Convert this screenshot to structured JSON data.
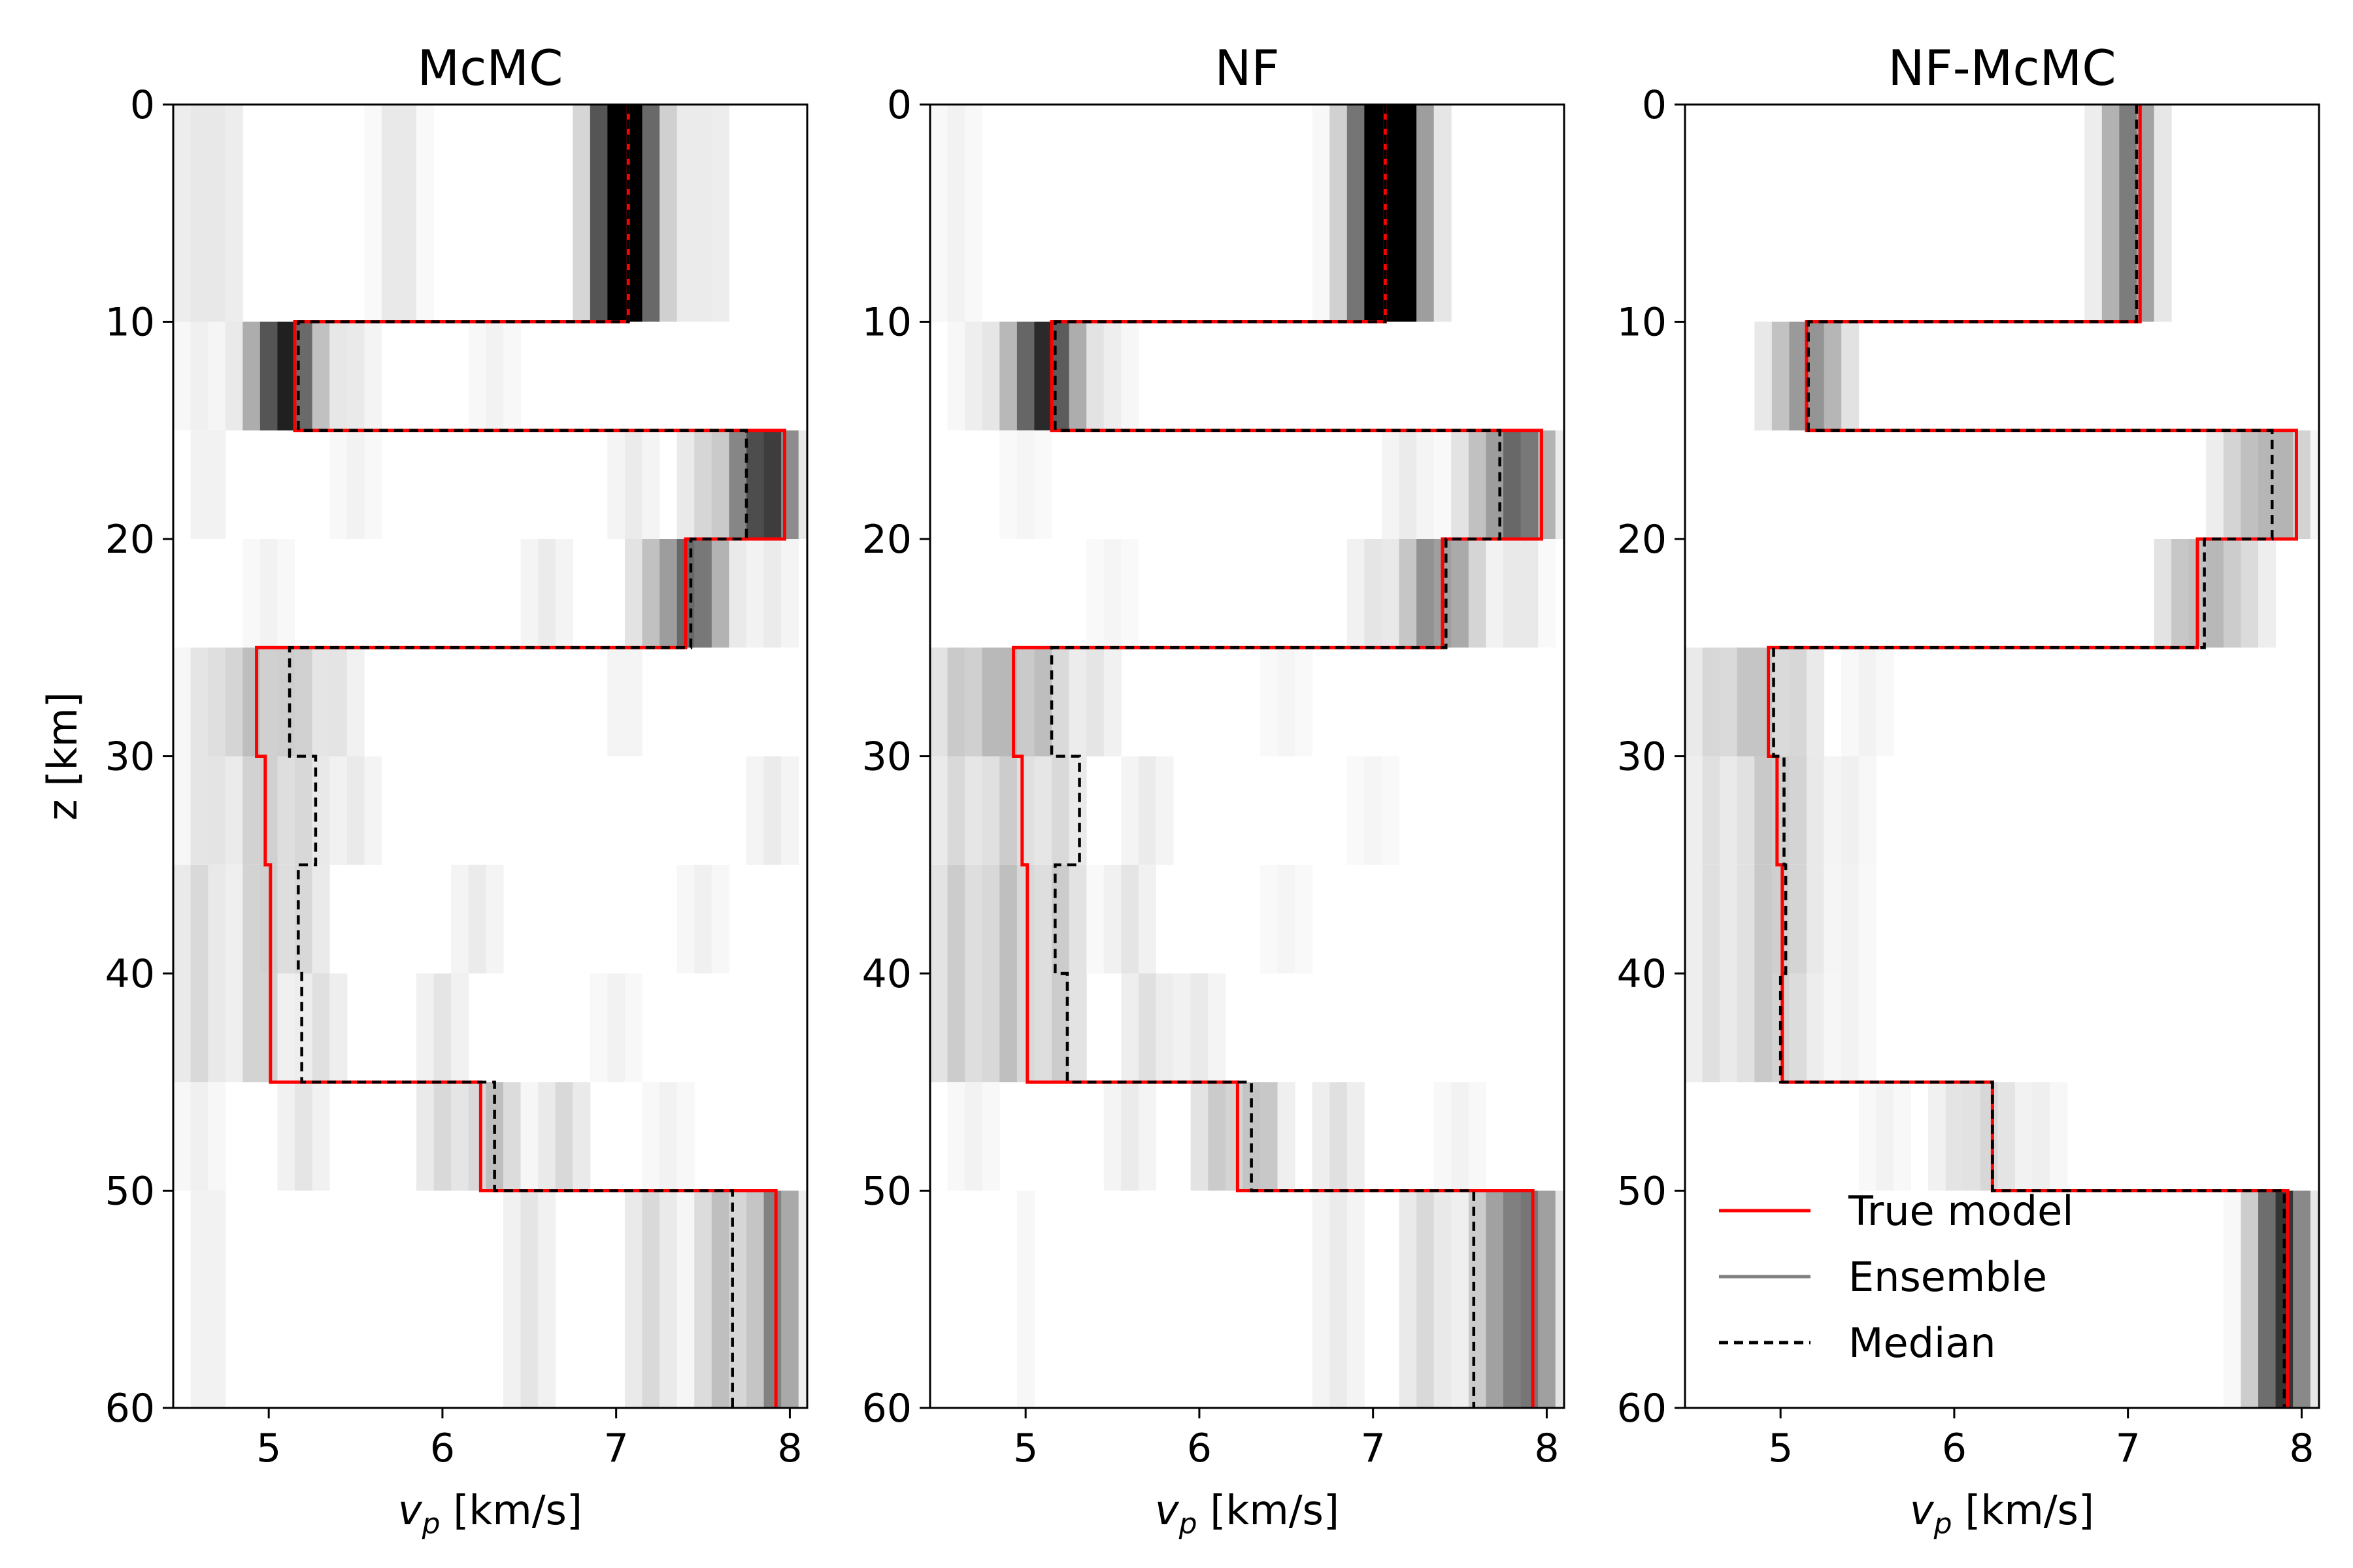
{
  "chart_data": [
    {
      "type": "heatmap",
      "title": "McMC",
      "ylabel": "z [km]",
      "xlim": [
        4.45,
        8.1
      ],
      "ylim": [
        60,
        0
      ],
      "xticks": [
        5,
        6,
        7,
        8
      ],
      "yticks": [
        0,
        10,
        20,
        30,
        40,
        50,
        60
      ],
      "true_model": {
        "layer_boundaries_km": [
          0,
          10,
          15,
          20,
          25,
          30,
          35,
          40,
          45,
          50,
          60
        ],
        "vp_km_s": [
          7.07,
          5.15,
          7.97,
          7.4,
          4.93,
          4.98,
          5.01,
          5.01,
          6.22,
          7.92
        ]
      },
      "median": {
        "layer_boundaries_km": [
          0,
          10,
          15,
          20,
          25,
          30,
          35,
          40,
          45,
          50,
          60
        ],
        "vp_km_s": [
          7.07,
          5.17,
          7.75,
          7.43,
          5.12,
          5.27,
          5.17,
          5.19,
          6.3,
          7.67
        ]
      },
      "ensemble_density": [
        {
          "z": [
            0,
            10
          ],
          "bins": [
            [
              4.55,
              0.08
            ],
            [
              4.75,
              0.08
            ],
            [
              5.75,
              0.1
            ],
            [
              6.95,
              0.6
            ],
            [
              7.07,
              0.85
            ],
            [
              7.13,
              0.3
            ],
            [
              7.3,
              0.1
            ],
            [
              7.55,
              0.08
            ]
          ]
        },
        {
          "z": [
            10,
            15
          ],
          "bins": [
            [
              4.6,
              0.06
            ],
            [
              4.95,
              0.3
            ],
            [
              5.1,
              0.75
            ],
            [
              5.25,
              0.2
            ],
            [
              5.5,
              0.08
            ],
            [
              6.3,
              0.05
            ]
          ]
        },
        {
          "z": [
            15,
            20
          ],
          "bins": [
            [
              4.65,
              0.06
            ],
            [
              5.5,
              0.05
            ],
            [
              7.1,
              0.08
            ],
            [
              7.5,
              0.15
            ],
            [
              7.75,
              0.5
            ],
            [
              7.92,
              0.65
            ]
          ]
        },
        {
          "z": [
            20,
            25
          ],
          "bins": [
            [
              5.0,
              0.05
            ],
            [
              6.6,
              0.08
            ],
            [
              7.2,
              0.2
            ],
            [
              7.4,
              0.5
            ],
            [
              7.55,
              0.3
            ],
            [
              7.9,
              0.08
            ]
          ]
        },
        {
          "z": [
            25,
            30
          ],
          "bins": [
            [
              4.65,
              0.12
            ],
            [
              4.9,
              0.25
            ],
            [
              5.15,
              0.2
            ],
            [
              5.4,
              0.1
            ],
            [
              7.05,
              0.05
            ]
          ]
        },
        {
          "z": [
            30,
            35
          ],
          "bins": [
            [
              4.65,
              0.12
            ],
            [
              4.95,
              0.2
            ],
            [
              5.2,
              0.15
            ],
            [
              5.5,
              0.08
            ],
            [
              7.9,
              0.08
            ]
          ]
        },
        {
          "z": [
            35,
            40
          ],
          "bins": [
            [
              4.6,
              0.15
            ],
            [
              4.95,
              0.2
            ],
            [
              5.2,
              0.15
            ],
            [
              6.2,
              0.08
            ],
            [
              7.5,
              0.06
            ]
          ]
        },
        {
          "z": [
            40,
            45
          ],
          "bins": [
            [
              4.6,
              0.15
            ],
            [
              4.95,
              0.2
            ],
            [
              5.3,
              0.12
            ],
            [
              6.0,
              0.1
            ],
            [
              7.0,
              0.05
            ]
          ]
        },
        {
          "z": [
            45,
            50
          ],
          "bins": [
            [
              4.6,
              0.06
            ],
            [
              5.2,
              0.1
            ],
            [
              6.0,
              0.15
            ],
            [
              6.3,
              0.25
            ],
            [
              6.7,
              0.15
            ],
            [
              7.3,
              0.05
            ]
          ]
        },
        {
          "z": [
            50,
            60
          ],
          "bins": [
            [
              4.65,
              0.06
            ],
            [
              6.5,
              0.1
            ],
            [
              7.2,
              0.15
            ],
            [
              7.6,
              0.25
            ],
            [
              7.92,
              0.5
            ]
          ]
        }
      ]
    },
    {
      "type": "heatmap",
      "title": "NF",
      "xlim": [
        4.45,
        8.1
      ],
      "ylim": [
        60,
        0
      ],
      "xticks": [
        5,
        6,
        7,
        8
      ],
      "yticks": [
        0,
        10,
        20,
        30,
        40,
        50,
        60
      ],
      "true_model": {
        "layer_boundaries_km": [
          0,
          10,
          15,
          20,
          25,
          30,
          35,
          40,
          45,
          50,
          60
        ],
        "vp_km_s": [
          7.07,
          5.15,
          7.97,
          7.4,
          4.93,
          4.98,
          5.01,
          5.01,
          6.22,
          7.92
        ]
      },
      "median": {
        "layer_boundaries_km": [
          0,
          10,
          15,
          20,
          25,
          30,
          35,
          40,
          45,
          50,
          60
        ],
        "vp_km_s": [
          7.07,
          5.17,
          7.73,
          7.42,
          5.15,
          5.31,
          5.17,
          5.24,
          6.3,
          7.58
        ]
      },
      "ensemble_density": [
        {
          "z": [
            0,
            10
          ],
          "bins": [
            [
              4.6,
              0.05
            ],
            [
              6.9,
              0.3
            ],
            [
              7.05,
              0.9
            ],
            [
              7.15,
              0.85
            ],
            [
              7.3,
              0.15
            ]
          ]
        },
        {
          "z": [
            10,
            15
          ],
          "bins": [
            [
              4.7,
              0.06
            ],
            [
              4.95,
              0.25
            ],
            [
              5.1,
              0.7
            ],
            [
              5.25,
              0.3
            ],
            [
              5.5,
              0.06
            ]
          ]
        },
        {
          "z": [
            15,
            20
          ],
          "bins": [
            [
              5.0,
              0.04
            ],
            [
              7.2,
              0.08
            ],
            [
              7.6,
              0.2
            ],
            [
              7.8,
              0.5
            ],
            [
              7.95,
              0.3
            ]
          ]
        },
        {
          "z": [
            20,
            25
          ],
          "bins": [
            [
              5.5,
              0.04
            ],
            [
              7.0,
              0.1
            ],
            [
              7.3,
              0.4
            ],
            [
              7.5,
              0.3
            ],
            [
              7.85,
              0.1
            ]
          ]
        },
        {
          "z": [
            25,
            30
          ],
          "bins": [
            [
              4.6,
              0.2
            ],
            [
              4.85,
              0.3
            ],
            [
              5.1,
              0.25
            ],
            [
              5.4,
              0.1
            ],
            [
              6.5,
              0.04
            ]
          ]
        },
        {
          "z": [
            30,
            35
          ],
          "bins": [
            [
              4.6,
              0.15
            ],
            [
              4.9,
              0.2
            ],
            [
              5.2,
              0.15
            ],
            [
              5.7,
              0.08
            ],
            [
              7.0,
              0.04
            ]
          ]
        },
        {
          "z": [
            35,
            40
          ],
          "bins": [
            [
              4.6,
              0.2
            ],
            [
              4.9,
              0.25
            ],
            [
              5.2,
              0.2
            ],
            [
              5.6,
              0.1
            ],
            [
              6.5,
              0.04
            ]
          ]
        },
        {
          "z": [
            40,
            45
          ],
          "bins": [
            [
              4.6,
              0.2
            ],
            [
              4.9,
              0.25
            ],
            [
              5.2,
              0.2
            ],
            [
              5.7,
              0.12
            ],
            [
              6.0,
              0.08
            ]
          ]
        },
        {
          "z": [
            45,
            50
          ],
          "bins": [
            [
              4.7,
              0.05
            ],
            [
              5.6,
              0.08
            ],
            [
              6.1,
              0.2
            ],
            [
              6.35,
              0.25
            ],
            [
              6.8,
              0.12
            ],
            [
              7.5,
              0.05
            ]
          ]
        },
        {
          "z": [
            50,
            60
          ],
          "bins": [
            [
              5.0,
              0.03
            ],
            [
              6.8,
              0.08
            ],
            [
              7.3,
              0.15
            ],
            [
              7.65,
              0.2
            ],
            [
              7.8,
              0.35
            ],
            [
              7.95,
              0.4
            ]
          ]
        }
      ]
    },
    {
      "type": "heatmap",
      "title": "NF-McMC",
      "xlabel": "v_p [km/s]",
      "xlim": [
        4.45,
        8.1
      ],
      "ylim": [
        60,
        0
      ],
      "xticks": [
        5,
        6,
        7,
        8
      ],
      "yticks": [
        0,
        10,
        20,
        30,
        40,
        50,
        60
      ],
      "legend": {
        "placement": "lower-left",
        "entries": [
          "True model",
          "Ensemble",
          "Median"
        ]
      },
      "true_model": {
        "layer_boundaries_km": [
          0,
          10,
          15,
          20,
          25,
          30,
          35,
          40,
          45,
          50,
          60
        ],
        "vp_km_s": [
          7.07,
          5.15,
          7.97,
          7.4,
          4.93,
          4.98,
          5.01,
          5.01,
          6.22,
          7.92
        ]
      },
      "median": {
        "layer_boundaries_km": [
          0,
          10,
          15,
          20,
          25,
          30,
          35,
          40,
          45,
          50,
          60
        ],
        "vp_km_s": [
          7.05,
          5.16,
          7.83,
          7.44,
          4.96,
          5.02,
          5.03,
          5.0,
          6.22,
          7.9
        ]
      },
      "ensemble_density": [
        {
          "z": [
            0,
            10
          ],
          "bins": [
            [
              6.95,
              0.25
            ],
            [
              7.05,
              0.35
            ]
          ]
        },
        {
          "z": [
            10,
            15
          ],
          "bins": [
            [
              5.0,
              0.15
            ],
            [
              5.15,
              0.35
            ],
            [
              5.3,
              0.2
            ]
          ]
        },
        {
          "z": [
            15,
            20
          ],
          "bins": [
            [
              7.6,
              0.12
            ],
            [
              7.75,
              0.2
            ],
            [
              7.92,
              0.25
            ]
          ]
        },
        {
          "z": [
            20,
            25
          ],
          "bins": [
            [
              7.3,
              0.2
            ],
            [
              7.5,
              0.25
            ],
            [
              7.7,
              0.12
            ]
          ]
        },
        {
          "z": [
            25,
            30
          ],
          "bins": [
            [
              4.6,
              0.15
            ],
            [
              4.85,
              0.25
            ],
            [
              5.1,
              0.15
            ],
            [
              5.5,
              0.05
            ]
          ]
        },
        {
          "z": [
            30,
            35
          ],
          "bins": [
            [
              4.6,
              0.12
            ],
            [
              4.9,
              0.2
            ],
            [
              5.1,
              0.15
            ],
            [
              5.4,
              0.06
            ]
          ]
        },
        {
          "z": [
            35,
            40
          ],
          "bins": [
            [
              4.6,
              0.12
            ],
            [
              4.9,
              0.2
            ],
            [
              5.1,
              0.15
            ],
            [
              5.4,
              0.05
            ]
          ]
        },
        {
          "z": [
            40,
            45
          ],
          "bins": [
            [
              4.6,
              0.12
            ],
            [
              4.9,
              0.2
            ],
            [
              5.1,
              0.12
            ],
            [
              5.4,
              0.05
            ]
          ]
        },
        {
          "z": [
            45,
            50
          ],
          "bins": [
            [
              5.6,
              0.05
            ],
            [
              6.0,
              0.1
            ],
            [
              6.22,
              0.15
            ],
            [
              6.5,
              0.06
            ]
          ]
        },
        {
          "z": [
            50,
            60
          ],
          "bins": [
            [
              7.8,
              0.3
            ],
            [
              7.92,
              0.65
            ]
          ]
        }
      ]
    }
  ],
  "colors": {
    "true_model": "#ff0000",
    "median": "#000000",
    "ensemble": "#808080"
  }
}
